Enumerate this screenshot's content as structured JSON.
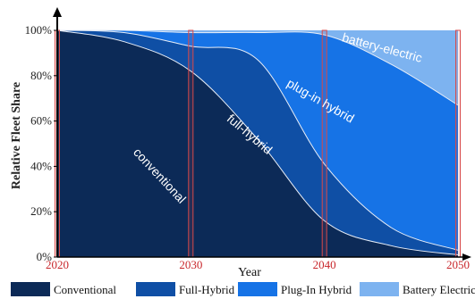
{
  "chart_data": {
    "type": "area",
    "stacked": true,
    "xlabel": "Year",
    "ylabel": "Relative Fleet Share",
    "xlim": [
      2020,
      2050
    ],
    "ylim": [
      0,
      100
    ],
    "x_ticks": [
      "2020",
      "2030",
      "2040",
      "2050"
    ],
    "y_ticks": [
      "0%",
      "20%",
      "40%",
      "60%",
      "80%",
      "100%"
    ],
    "highlighted_years": [
      2020,
      2030,
      2040,
      2050
    ],
    "x": [
      2020,
      2025,
      2030,
      2035,
      2040,
      2045,
      2050
    ],
    "series": [
      {
        "name": "Conventional",
        "color": "#0c2a57",
        "values": [
          100,
          95,
          82,
          52,
          16,
          5,
          1
        ]
      },
      {
        "name": "Full-Hybrid",
        "color": "#0f4fa5",
        "values": [
          0,
          4,
          11,
          35,
          25,
          8,
          2
        ]
      },
      {
        "name": "Plug-In Hybrid",
        "color": "#1673e6",
        "values": [
          0,
          1,
          6,
          12,
          57,
          72,
          64
        ]
      },
      {
        "name": "Battery Electric",
        "color": "#7db3f0",
        "values": [
          0,
          0,
          1,
          1,
          2,
          15,
          33
        ]
      }
    ],
    "annotations": [
      {
        "text": "conventional",
        "series": "Conventional"
      },
      {
        "text": "full-hybrid",
        "series": "Full-Hybrid"
      },
      {
        "text": "plug-in hybrid",
        "series": "Plug-In Hybrid"
      },
      {
        "text": "battery-electric",
        "series": "Battery Electric"
      }
    ],
    "legend_position": "bottom"
  },
  "legend": [
    "Conventional",
    "Full-Hybrid",
    "Plug-In Hybrid",
    "Battery Electric"
  ]
}
